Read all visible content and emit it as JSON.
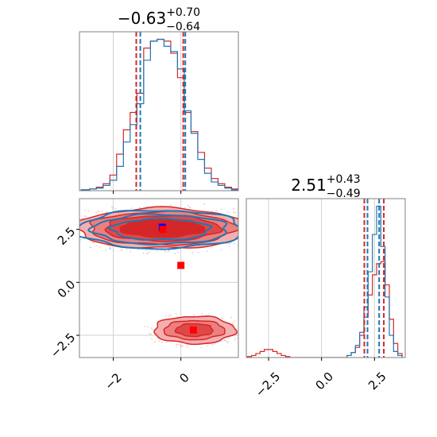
{
  "colors": {
    "red": "#d62728",
    "blue": "#1f77b4",
    "red_fill_dark": "#d62728",
    "red_fill_light": "#f4b0b0",
    "marker_blue": "#0000ff",
    "marker_red": "#ff0000",
    "grid": "#d0d0d0",
    "frame": "#808080"
  },
  "chart_data": [
    {
      "type": "histogram",
      "panel": "top-left",
      "title_main": "−0.63",
      "title_sup": "+0.70",
      "title_sub": "−0.64",
      "xlim": [
        -3.0,
        1.7
      ],
      "grid": true,
      "quantile_lines": {
        "red": [
          -1.32,
          0.07
        ],
        "blue": [
          -1.2,
          0.13
        ]
      },
      "series": [
        {
          "name": "",
          "color": "red",
          "bin_edges": [
            -2.95,
            -2.7,
            -2.5,
            -2.3,
            -2.1,
            -1.9,
            -1.7,
            -1.5,
            -1.3,
            -1.1,
            -0.9,
            -0.7,
            -0.5,
            -0.3,
            -0.1,
            0.1,
            0.3,
            0.5,
            0.7,
            0.9,
            1.1,
            1.3,
            1.5,
            1.7
          ],
          "counts": [
            0.5,
            1,
            2,
            4,
            9,
            21,
            35,
            45,
            56,
            82,
            86,
            87,
            86,
            79,
            65,
            45,
            34,
            22,
            13,
            7,
            4,
            2,
            1
          ]
        },
        {
          "name": "",
          "color": "blue",
          "bin_edges": [
            -2.95,
            -2.7,
            -2.5,
            -2.3,
            -2.1,
            -1.9,
            -1.7,
            -1.5,
            -1.3,
            -1.1,
            -0.9,
            -0.7,
            -0.5,
            -0.3,
            -0.1,
            0.1,
            0.3,
            0.5,
            0.7,
            0.9,
            1.1,
            1.3,
            1.5,
            1.7
          ],
          "counts": [
            0.5,
            1,
            1.5,
            3,
            6,
            14,
            28,
            38,
            50,
            75,
            86,
            87,
            83,
            80,
            70,
            46,
            33,
            18,
            10,
            5,
            3,
            1.5,
            0.5
          ]
        }
      ]
    },
    {
      "type": "scatter",
      "panel": "bottom-left",
      "xlim": [
        -3.0,
        1.7
      ],
      "ylim": [
        -3.55,
        3.95
      ],
      "x_ticks": [
        -2,
        0
      ],
      "x_tick_labels": [
        "−2",
        "0"
      ],
      "y_ticks": [
        -2.5,
        0.0,
        2.5
      ],
      "y_tick_labels": [
        "−2.5",
        "0.0",
        "2.5"
      ],
      "grid": true,
      "density_blobs": [
        {
          "color": "red",
          "cx": -0.55,
          "cy": 2.55,
          "rx": [
            2.55,
            2.15,
            1.7,
            1.25
          ],
          "ry": [
            0.95,
            0.78,
            0.6,
            0.42
          ]
        },
        {
          "color": "blue",
          "cx": -0.6,
          "cy": 2.5,
          "rx": [
            2.45,
            2.0,
            1.45
          ],
          "ry": [
            0.9,
            0.7,
            0.5
          ]
        },
        {
          "color": "red",
          "cx": 0.4,
          "cy": -2.25,
          "rx": [
            1.2,
            0.9,
            0.55
          ],
          "ry": [
            0.65,
            0.45,
            0.3
          ]
        }
      ],
      "markers": [
        {
          "color": "marker_blue",
          "x": -0.55,
          "y": 2.6
        },
        {
          "color": "marker_red",
          "x": -0.53,
          "y": 2.5
        },
        {
          "color": "marker_red",
          "x": 0.0,
          "y": 0.8
        },
        {
          "color": "marker_red",
          "x": 0.37,
          "y": -2.25
        }
      ]
    },
    {
      "type": "histogram",
      "panel": "bottom-right",
      "title_main": "2.51",
      "title_sup": "+0.43",
      "title_sub": "−0.49",
      "xlim": [
        -3.55,
        3.95
      ],
      "x_ticks": [
        -2.5,
        0.0,
        2.5
      ],
      "x_tick_labels": [
        "−2.5",
        "0.0",
        "2.5"
      ],
      "grid": true,
      "quantile_lines": {
        "red": [
          2.02,
          2.94
        ],
        "blue": [
          2.17,
          2.72
        ]
      },
      "series": [
        {
          "name": "",
          "color": "red",
          "bin_edges": [
            -3.5,
            -3.3,
            -3.1,
            -2.9,
            -2.7,
            -2.5,
            -2.3,
            -2.1,
            -1.9,
            -1.7,
            -1.5,
            1.2,
            1.4,
            1.6,
            1.8,
            2.0,
            2.2,
            2.4,
            2.6,
            2.8,
            3.0,
            3.2,
            3.4,
            3.6,
            3.8
          ],
          "counts": [
            1,
            2,
            4,
            6,
            8,
            8,
            6,
            4,
            2,
            1,
            0,
            2,
            5,
            10,
            22,
            40,
            62,
            82,
            93,
            95,
            72,
            38,
            14,
            4
          ]
        },
        {
          "name": "",
          "color": "blue",
          "bin_edges": [
            1.2,
            1.4,
            1.6,
            1.8,
            2.0,
            2.2,
            2.4,
            2.6,
            2.8,
            3.0,
            3.2,
            3.4,
            3.6,
            3.8
          ],
          "counts": [
            2,
            5,
            12,
            25,
            50,
            85,
            122,
            150,
            110,
            60,
            22,
            6,
            2
          ]
        }
      ]
    }
  ]
}
